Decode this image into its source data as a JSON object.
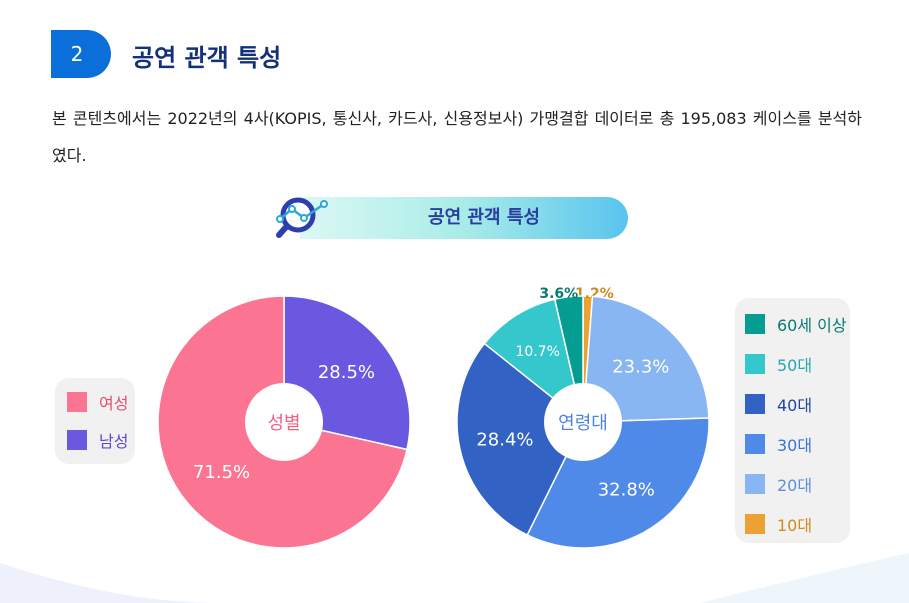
{
  "section": {
    "number": "2",
    "title": "공연 관객 특성"
  },
  "description": "본 콘텐츠에서는 2022년의 4사(KOPIS, 통신사, 카드사, 신용정보사) 가맹결합 데이터로 총 195,083 케이스를 분석하였다.",
  "banner": {
    "title": "공연 관객 특성",
    "icon": "magnifier-chart-icon"
  },
  "chart_data": [
    {
      "type": "pie",
      "center_label": "성별",
      "start": "top",
      "direction": "clockwise",
      "legend_position": "left",
      "slices": [
        {
          "name": "남성",
          "value": 28.5,
          "label": "28.5%",
          "color": "#6a58e0",
          "text_color": "#5a48d0"
        },
        {
          "name": "여성",
          "value": 71.5,
          "label": "71.5%",
          "color": "#fb7592",
          "text_color": "#e0506e"
        }
      ],
      "legend_order": [
        1,
        0
      ]
    },
    {
      "type": "pie",
      "center_label": "연령대",
      "start": "top",
      "direction": "clockwise",
      "legend_position": "right",
      "slices": [
        {
          "name": "10대",
          "value": 1.2,
          "label": "1.2%",
          "color": "#eca232",
          "text_color": "#d08a20",
          "outside": true
        },
        {
          "name": "20대",
          "value": 23.3,
          "label": "23.3%",
          "color": "#88b6f2",
          "text_color": "#5f8fd8"
        },
        {
          "name": "30대",
          "value": 32.8,
          "label": "32.8%",
          "color": "#4f8ae8",
          "text_color": "#3a72d8"
        },
        {
          "name": "40대",
          "value": 28.4,
          "label": "28.4%",
          "color": "#3162c4",
          "text_color": "#24449e"
        },
        {
          "name": "50대",
          "value": 10.7,
          "label": "10.7%",
          "color": "#34c8cc",
          "text_color": "#26a8b0"
        },
        {
          "name": "60세 이상",
          "value": 3.6,
          "label": "3.6%",
          "color": "#059c92",
          "text_color": "#087a72",
          "outside": true
        }
      ],
      "legend_order": [
        5,
        4,
        3,
        2,
        1,
        0
      ]
    }
  ]
}
